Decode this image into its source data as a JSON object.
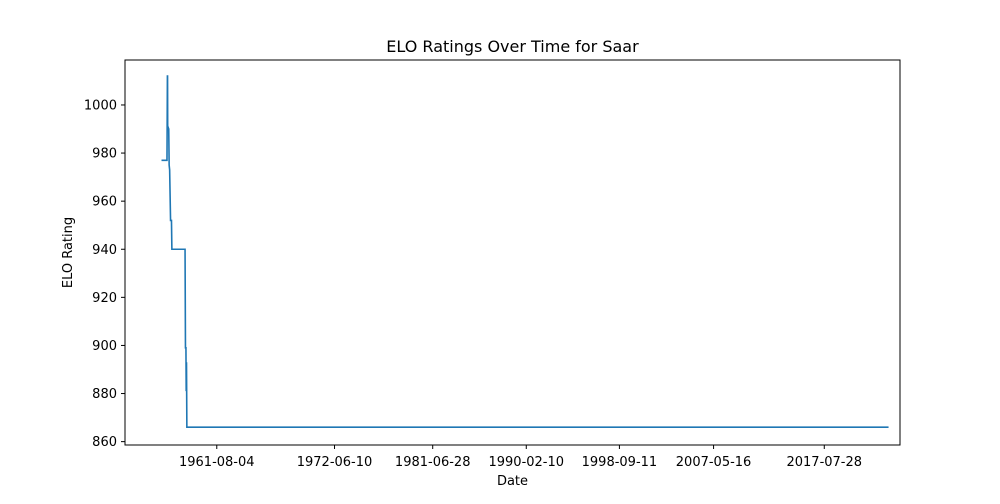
{
  "chart_data": {
    "type": "line",
    "title": "ELO Ratings Over Time for Saar",
    "xlabel": "Date",
    "ylabel": "ELO Rating",
    "x_ticks": [
      "1961-08-04",
      "1972-06-10",
      "1981-06-28",
      "1990-02-10",
      "1998-09-11",
      "2007-05-16",
      "2017-07-28"
    ],
    "y_ticks": [
      860,
      880,
      900,
      920,
      940,
      960,
      980,
      1000
    ],
    "xlim": [
      "1953-02-18",
      "2024-07-20"
    ],
    "ylim": [
      858.6,
      1018.7
    ],
    "grid": false,
    "line_color": "#1f77b4",
    "series": [
      {
        "x": [
          "1956-07-01",
          "1957-01-01",
          "1957-01-15",
          "1957-01-20",
          "1957-01-25",
          "1957-02-01",
          "1957-03-01",
          "1957-03-15",
          "1957-04-01",
          "1957-05-01",
          "1957-06-01",
          "1957-06-15",
          "1958-09-01",
          "1958-09-15",
          "1958-10-01",
          "1958-10-10",
          "1958-10-20",
          "1958-11-01",
          "1958-11-10",
          "1958-11-20",
          "1959-01-01",
          "2023-07-01"
        ],
        "y": [
          977,
          977,
          1012,
          1012,
          991,
          991,
          990,
          975,
          973,
          952,
          952,
          940,
          940,
          899,
          899,
          881,
          893,
          866,
          866,
          866,
          866,
          866
        ]
      }
    ]
  }
}
